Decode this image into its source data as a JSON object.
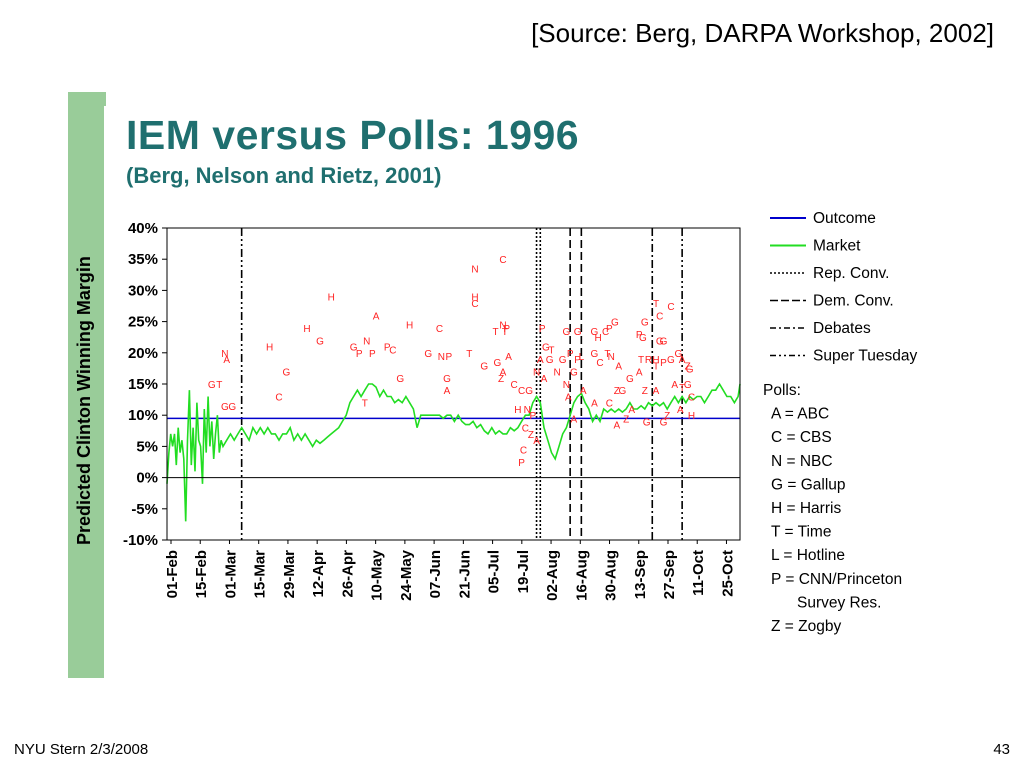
{
  "source": "[Source: Berg, DARPA Workshop, 2002]",
  "footer": {
    "left": "NYU Stern 2/3/2008",
    "page": "43"
  },
  "chart_data": {
    "type": "line",
    "title": "IEM versus Polls:  1996",
    "subtitle": "(Berg, Nelson and Rietz, 2001)",
    "ylabel": "Predicted Clinton Winning Margin",
    "xlabel": "",
    "ylim": [
      -10,
      40
    ],
    "yticks": [
      "40%",
      "35%",
      "30%",
      "25%",
      "20%",
      "15%",
      "10%",
      "5%",
      "0%",
      "-5%",
      "-10%"
    ],
    "x_tick_labels": [
      "01-Feb",
      "15-Feb",
      "01-Mar",
      "15-Mar",
      "29-Mar",
      "12-Apr",
      "26-Apr",
      "10-May",
      "24-May",
      "07-Jun",
      "21-Jun",
      "05-Jul",
      "19-Jul",
      "02-Aug",
      "16-Aug",
      "30-Aug",
      "13-Sep",
      "27-Sep",
      "11-Oct",
      "25-Oct"
    ],
    "outcome": 9.5,
    "market": [
      [
        0,
        -1
      ],
      [
        1,
        4
      ],
      [
        2,
        7
      ],
      [
        3,
        5
      ],
      [
        4,
        7
      ],
      [
        5,
        2
      ],
      [
        6,
        8
      ],
      [
        7,
        4
      ],
      [
        8,
        6
      ],
      [
        9,
        3
      ],
      [
        10,
        -7
      ],
      [
        11,
        6
      ],
      [
        12,
        14
      ],
      [
        13,
        2
      ],
      [
        14,
        8
      ],
      [
        15,
        1
      ],
      [
        16,
        12
      ],
      [
        17,
        6
      ],
      [
        18,
        5
      ],
      [
        19,
        -1
      ],
      [
        20,
        11
      ],
      [
        21,
        4
      ],
      [
        22,
        13
      ],
      [
        23,
        5
      ],
      [
        24,
        9
      ],
      [
        25,
        3
      ],
      [
        26,
        7
      ],
      [
        27,
        10
      ],
      [
        28,
        4
      ],
      [
        29,
        6
      ],
      [
        30,
        5
      ],
      [
        32,
        6
      ],
      [
        34,
        7
      ],
      [
        36,
        6
      ],
      [
        38,
        7
      ],
      [
        40,
        8
      ],
      [
        42,
        7
      ],
      [
        44,
        6
      ],
      [
        46,
        8
      ],
      [
        48,
        7
      ],
      [
        50,
        8
      ],
      [
        52,
        7
      ],
      [
        54,
        8
      ],
      [
        56,
        7
      ],
      [
        58,
        7
      ],
      [
        60,
        6
      ],
      [
        62,
        7
      ],
      [
        64,
        7
      ],
      [
        66,
        8
      ],
      [
        68,
        6
      ],
      [
        70,
        7
      ],
      [
        72,
        6
      ],
      [
        74,
        7
      ],
      [
        76,
        6
      ],
      [
        78,
        5
      ],
      [
        80,
        6
      ],
      [
        82,
        5.5
      ],
      [
        84,
        6
      ],
      [
        86,
        6.5
      ],
      [
        88,
        7
      ],
      [
        90,
        7.5
      ],
      [
        92,
        8
      ],
      [
        94,
        9
      ],
      [
        96,
        10
      ],
      [
        98,
        12
      ],
      [
        100,
        13
      ],
      [
        102,
        14
      ],
      [
        104,
        13
      ],
      [
        106,
        14
      ],
      [
        108,
        15
      ],
      [
        110,
        15
      ],
      [
        112,
        14.5
      ],
      [
        114,
        13
      ],
      [
        116,
        14
      ],
      [
        118,
        13
      ],
      [
        120,
        13
      ],
      [
        122,
        12
      ],
      [
        124,
        12.5
      ],
      [
        126,
        12
      ],
      [
        128,
        13
      ],
      [
        130,
        12
      ],
      [
        132,
        11
      ],
      [
        134,
        8
      ],
      [
        136,
        10
      ],
      [
        138,
        10
      ],
      [
        140,
        10
      ],
      [
        142,
        10
      ],
      [
        144,
        10
      ],
      [
        146,
        10
      ],
      [
        148,
        9.5
      ],
      [
        150,
        10
      ],
      [
        152,
        10
      ],
      [
        154,
        9
      ],
      [
        156,
        10
      ],
      [
        158,
        9
      ],
      [
        160,
        8.5
      ],
      [
        162,
        8.5
      ],
      [
        164,
        9
      ],
      [
        166,
        8
      ],
      [
        168,
        8.5
      ],
      [
        170,
        7.5
      ],
      [
        172,
        7
      ],
      [
        174,
        8
      ],
      [
        176,
        7
      ],
      [
        178,
        7.5
      ],
      [
        180,
        7
      ],
      [
        182,
        7
      ],
      [
        184,
        8
      ],
      [
        186,
        7.5
      ],
      [
        188,
        8
      ],
      [
        190,
        9
      ],
      [
        192,
        10
      ],
      [
        194,
        10
      ],
      [
        196,
        12
      ],
      [
        198,
        13
      ],
      [
        200,
        12
      ],
      [
        202,
        8
      ],
      [
        204,
        6
      ],
      [
        206,
        4
      ],
      [
        208,
        3
      ],
      [
        210,
        5
      ],
      [
        212,
        7
      ],
      [
        214,
        8
      ],
      [
        216,
        10
      ],
      [
        218,
        12
      ],
      [
        220,
        13
      ],
      [
        222,
        13.5
      ],
      [
        224,
        12
      ],
      [
        226,
        11
      ],
      [
        228,
        9
      ],
      [
        230,
        10
      ],
      [
        232,
        9
      ],
      [
        234,
        11
      ],
      [
        236,
        10.5
      ],
      [
        238,
        11
      ],
      [
        240,
        10.5
      ],
      [
        242,
        11
      ],
      [
        244,
        10.5
      ],
      [
        246,
        11
      ],
      [
        248,
        12
      ],
      [
        250,
        11
      ],
      [
        252,
        11
      ],
      [
        254,
        11.5
      ],
      [
        256,
        11
      ],
      [
        258,
        12
      ],
      [
        260,
        11.5
      ],
      [
        262,
        12
      ],
      [
        264,
        11.5
      ],
      [
        266,
        12
      ],
      [
        268,
        11
      ],
      [
        270,
        12
      ],
      [
        272,
        13
      ],
      [
        274,
        12
      ],
      [
        276,
        13
      ],
      [
        278,
        12
      ],
      [
        280,
        13
      ],
      [
        282,
        12.5
      ],
      [
        284,
        13
      ],
      [
        286,
        13
      ],
      [
        288,
        12
      ],
      [
        290,
        13
      ],
      [
        292,
        14
      ],
      [
        294,
        14
      ],
      [
        296,
        15
      ],
      [
        298,
        14
      ],
      [
        300,
        13
      ],
      [
        302,
        13
      ],
      [
        304,
        12
      ],
      [
        306,
        13
      ],
      [
        307,
        15
      ]
    ],
    "market_x_range": [
      0,
      307
    ],
    "reference_lines": {
      "rep_conv": [
        198,
        200
      ],
      "dem_conv": [
        216,
        222
      ],
      "debates": [
        260
      ],
      "super_tuesday": [
        40,
        276
      ]
    },
    "polls": [
      {
        "x": 31,
        "y": 20,
        "c": "N"
      },
      {
        "x": 32,
        "y": 19,
        "c": "A"
      },
      {
        "x": 24,
        "y": 15,
        "c": "G"
      },
      {
        "x": 28,
        "y": 15,
        "c": "T"
      },
      {
        "x": 31,
        "y": 11.5,
        "c": "G"
      },
      {
        "x": 35,
        "y": 11.5,
        "c": "G"
      },
      {
        "x": 55,
        "y": 21,
        "c": "H"
      },
      {
        "x": 60,
        "y": 13,
        "c": "C"
      },
      {
        "x": 64,
        "y": 17,
        "c": "G"
      },
      {
        "x": 75,
        "y": 24,
        "c": "H"
      },
      {
        "x": 82,
        "y": 22,
        "c": "G"
      },
      {
        "x": 88,
        "y": 29,
        "c": "H"
      },
      {
        "x": 100,
        "y": 21,
        "c": "G"
      },
      {
        "x": 103,
        "y": 20,
        "c": "P"
      },
      {
        "x": 107,
        "y": 22,
        "c": "N"
      },
      {
        "x": 110,
        "y": 20,
        "c": "P"
      },
      {
        "x": 112,
        "y": 26,
        "c": "A"
      },
      {
        "x": 118,
        "y": 21,
        "c": "P"
      },
      {
        "x": 121,
        "y": 20.5,
        "c": "C"
      },
      {
        "x": 106,
        "y": 12,
        "c": "T"
      },
      {
        "x": 125,
        "y": 16,
        "c": "G"
      },
      {
        "x": 130,
        "y": 24.5,
        "c": "H"
      },
      {
        "x": 140,
        "y": 20,
        "c": "G"
      },
      {
        "x": 146,
        "y": 24,
        "c": "C"
      },
      {
        "x": 147,
        "y": 19.5,
        "c": "N"
      },
      {
        "x": 151,
        "y": 19.5,
        "c": "P"
      },
      {
        "x": 150,
        "y": 16,
        "c": "G"
      },
      {
        "x": 150,
        "y": 14,
        "c": "A"
      },
      {
        "x": 162,
        "y": 20,
        "c": "T"
      },
      {
        "x": 165,
        "y": 33.5,
        "c": "N"
      },
      {
        "x": 165,
        "y": 29,
        "c": "H"
      },
      {
        "x": 165,
        "y": 28,
        "c": "C"
      },
      {
        "x": 170,
        "y": 18,
        "c": "G"
      },
      {
        "x": 177,
        "y": 18.5,
        "c": "G"
      },
      {
        "x": 180,
        "y": 35,
        "c": "C"
      },
      {
        "x": 180,
        "y": 24.5,
        "c": "N"
      },
      {
        "x": 182,
        "y": 24,
        "c": "P"
      },
      {
        "x": 181,
        "y": 23.5,
        "c": "T"
      },
      {
        "x": 176,
        "y": 23.5,
        "c": "T"
      },
      {
        "x": 183,
        "y": 19.5,
        "c": "A"
      },
      {
        "x": 180,
        "y": 17,
        "c": "A"
      },
      {
        "x": 179,
        "y": 16,
        "c": "Z"
      },
      {
        "x": 186,
        "y": 15,
        "c": "C"
      },
      {
        "x": 190,
        "y": 14,
        "c": "C"
      },
      {
        "x": 194,
        "y": 14,
        "c": "G"
      },
      {
        "x": 188,
        "y": 11,
        "c": "H"
      },
      {
        "x": 193,
        "y": 11,
        "c": "N"
      },
      {
        "x": 196,
        "y": 10,
        "c": "P"
      },
      {
        "x": 192,
        "y": 8,
        "c": "C"
      },
      {
        "x": 195,
        "y": 7,
        "c": "Z"
      },
      {
        "x": 198,
        "y": 6,
        "c": "A"
      },
      {
        "x": 190,
        "y": 2.5,
        "c": "P"
      },
      {
        "x": 191,
        "y": 4.5,
        "c": "C"
      },
      {
        "x": 201,
        "y": 24,
        "c": "P"
      },
      {
        "x": 203,
        "y": 21,
        "c": "G"
      },
      {
        "x": 205,
        "y": 19,
        "c": "G"
      },
      {
        "x": 206,
        "y": 20.5,
        "c": "T"
      },
      {
        "x": 200,
        "y": 19,
        "c": "A"
      },
      {
        "x": 198,
        "y": 17,
        "c": "N"
      },
      {
        "x": 202,
        "y": 16,
        "c": "A"
      },
      {
        "x": 209,
        "y": 17,
        "c": "N"
      },
      {
        "x": 212,
        "y": 19,
        "c": "G"
      },
      {
        "x": 216,
        "y": 20,
        "c": "P"
      },
      {
        "x": 220,
        "y": 23.5,
        "c": "G"
      },
      {
        "x": 214,
        "y": 23.5,
        "c": "G"
      },
      {
        "x": 215,
        "y": 13,
        "c": "A"
      },
      {
        "x": 218,
        "y": 17,
        "c": "G"
      },
      {
        "x": 220,
        "y": 19,
        "c": "P"
      },
      {
        "x": 222,
        "y": 19.5,
        "c": "L"
      },
      {
        "x": 214,
        "y": 15,
        "c": "N"
      },
      {
        "x": 223,
        "y": 14,
        "c": "A"
      },
      {
        "x": 218,
        "y": 9.5,
        "c": "A"
      },
      {
        "x": 229,
        "y": 23.5,
        "c": "G"
      },
      {
        "x": 231,
        "y": 22.5,
        "c": "H"
      },
      {
        "x": 235,
        "y": 23.5,
        "c": "C"
      },
      {
        "x": 237,
        "y": 24,
        "c": "P"
      },
      {
        "x": 240,
        "y": 25,
        "c": "G"
      },
      {
        "x": 229,
        "y": 20,
        "c": "G"
      },
      {
        "x": 232,
        "y": 18.5,
        "c": "C"
      },
      {
        "x": 236,
        "y": 20,
        "c": "T"
      },
      {
        "x": 238,
        "y": 19.5,
        "c": "N"
      },
      {
        "x": 242,
        "y": 18,
        "c": "A"
      },
      {
        "x": 241,
        "y": 14,
        "c": "Z"
      },
      {
        "x": 229,
        "y": 12,
        "c": "A"
      },
      {
        "x": 237,
        "y": 12,
        "c": "C"
      },
      {
        "x": 241,
        "y": 8.5,
        "c": "A"
      },
      {
        "x": 246,
        "y": 9.5,
        "c": "Z"
      },
      {
        "x": 248,
        "y": 16,
        "c": "G"
      },
      {
        "x": 244,
        "y": 14,
        "c": "G"
      },
      {
        "x": 249,
        "y": 11,
        "c": "A"
      },
      {
        "x": 253,
        "y": 23,
        "c": "P"
      },
      {
        "x": 255,
        "y": 22.5,
        "c": "G"
      },
      {
        "x": 256,
        "y": 25,
        "c": "G"
      },
      {
        "x": 254,
        "y": 19,
        "c": "T"
      },
      {
        "x": 258,
        "y": 19,
        "c": "R"
      },
      {
        "x": 253,
        "y": 17,
        "c": "A"
      },
      {
        "x": 256,
        "y": 14,
        "c": "Z"
      },
      {
        "x": 257,
        "y": 9,
        "c": "G"
      },
      {
        "x": 262,
        "y": 28,
        "c": "T"
      },
      {
        "x": 264,
        "y": 26,
        "c": "C"
      },
      {
        "x": 270,
        "y": 27.5,
        "c": "C"
      },
      {
        "x": 264,
        "y": 22,
        "c": "G"
      },
      {
        "x": 266,
        "y": 22,
        "c": "G"
      },
      {
        "x": 262,
        "y": 19,
        "c": "H"
      },
      {
        "x": 266,
        "y": 18.5,
        "c": "P"
      },
      {
        "x": 262,
        "y": 18,
        "c": "T"
      },
      {
        "x": 262,
        "y": 14,
        "c": "A"
      },
      {
        "x": 270,
        "y": 19,
        "c": "G"
      },
      {
        "x": 274,
        "y": 20,
        "c": "G"
      },
      {
        "x": 276,
        "y": 19,
        "c": "A"
      },
      {
        "x": 279,
        "y": 18,
        "c": "Z"
      },
      {
        "x": 280,
        "y": 17.5,
        "c": "G"
      },
      {
        "x": 272,
        "y": 15,
        "c": "A"
      },
      {
        "x": 276,
        "y": 14.5,
        "c": "T"
      },
      {
        "x": 279,
        "y": 15,
        "c": "G"
      },
      {
        "x": 281,
        "y": 13,
        "c": "C"
      },
      {
        "x": 275,
        "y": 11,
        "c": "A"
      },
      {
        "x": 281,
        "y": 10,
        "c": "H"
      },
      {
        "x": 266,
        "y": 9,
        "c": "G"
      },
      {
        "x": 268,
        "y": 10,
        "c": "Z"
      }
    ],
    "legend": {
      "series": [
        {
          "label": "Outcome",
          "style": "outcome",
          "color": "#0000cc"
        },
        {
          "label": "Market",
          "style": "market",
          "color": "#22dd22"
        },
        {
          "label": "Rep. Conv.",
          "style": "dotted",
          "color": "#000000"
        },
        {
          "label": "Dem. Conv.",
          "style": "dashed",
          "color": "#000000"
        },
        {
          "label": "Debates",
          "style": "dashdot",
          "color": "#000000"
        },
        {
          "label": "Super Tuesday",
          "style": "dashdotdot",
          "color": "#000000"
        }
      ],
      "polls_title": "Polls:",
      "polls_items": [
        "A = ABC",
        "C = CBS",
        "N = NBC",
        "G = Gallup",
        "H = Harris",
        "T = Time",
        "L = Hotline",
        "P = CNN/Princeton",
        "Survey Res.",
        "Z = Zogby"
      ]
    },
    "colors": {
      "outcome": "#0000cc",
      "market": "#22dd22",
      "polls": "#ff2222",
      "accent_bar": "#99cc99",
      "title": "#1f6f6f"
    }
  }
}
